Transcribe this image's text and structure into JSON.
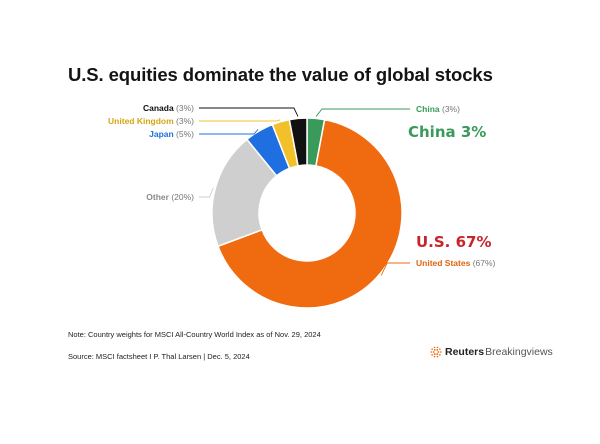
{
  "chart_data": {
    "type": "pie",
    "title": "U.S. equities dominate the value of global stocks",
    "series": [
      {
        "values": [
          3,
          67,
          20,
          5,
          3,
          3
        ]
      }
    ],
    "categories": [
      "China",
      "United States",
      "Other",
      "Japan",
      "United Kingdom",
      "Canada"
    ],
    "colors": [
      "#3a9a5b",
      "#f06a10",
      "#cfcfcf",
      "#1f6fe0",
      "#f2c12a",
      "#111111"
    ],
    "labels": [
      {
        "name": "China",
        "pct": "(3%)",
        "name_color": "#3a9a5b"
      },
      {
        "name": "United States",
        "pct": "(67%)",
        "name_color": "#e0640f"
      },
      {
        "name": "Other",
        "pct": "(20%)",
        "name_color": "#8a8a8a"
      },
      {
        "name": "Japan",
        "pct": "(5%)",
        "name_color": "#1f6fe0"
      },
      {
        "name": "United Kingdom",
        "pct": "(3%)",
        "name_color": "#d6a514"
      },
      {
        "name": "Canada",
        "pct": "(3%)",
        "name_color": "#111111"
      }
    ],
    "donut": true
  },
  "callouts": {
    "china": {
      "text": "China  3%",
      "color": "#3a9a5b"
    },
    "us": {
      "text": "U.S. 67%",
      "color": "#c8242b"
    }
  },
  "note": "Note: Country weights for MSCI All-Country World Index as of Nov. 29, 2024",
  "source": "Source: MSCI factsheet I P. Thal Larsen | Dec. 5, 2024",
  "brand": {
    "reuters": "Reuters",
    "bv": "Breakingviews",
    "logo_color": "#f06a10"
  }
}
